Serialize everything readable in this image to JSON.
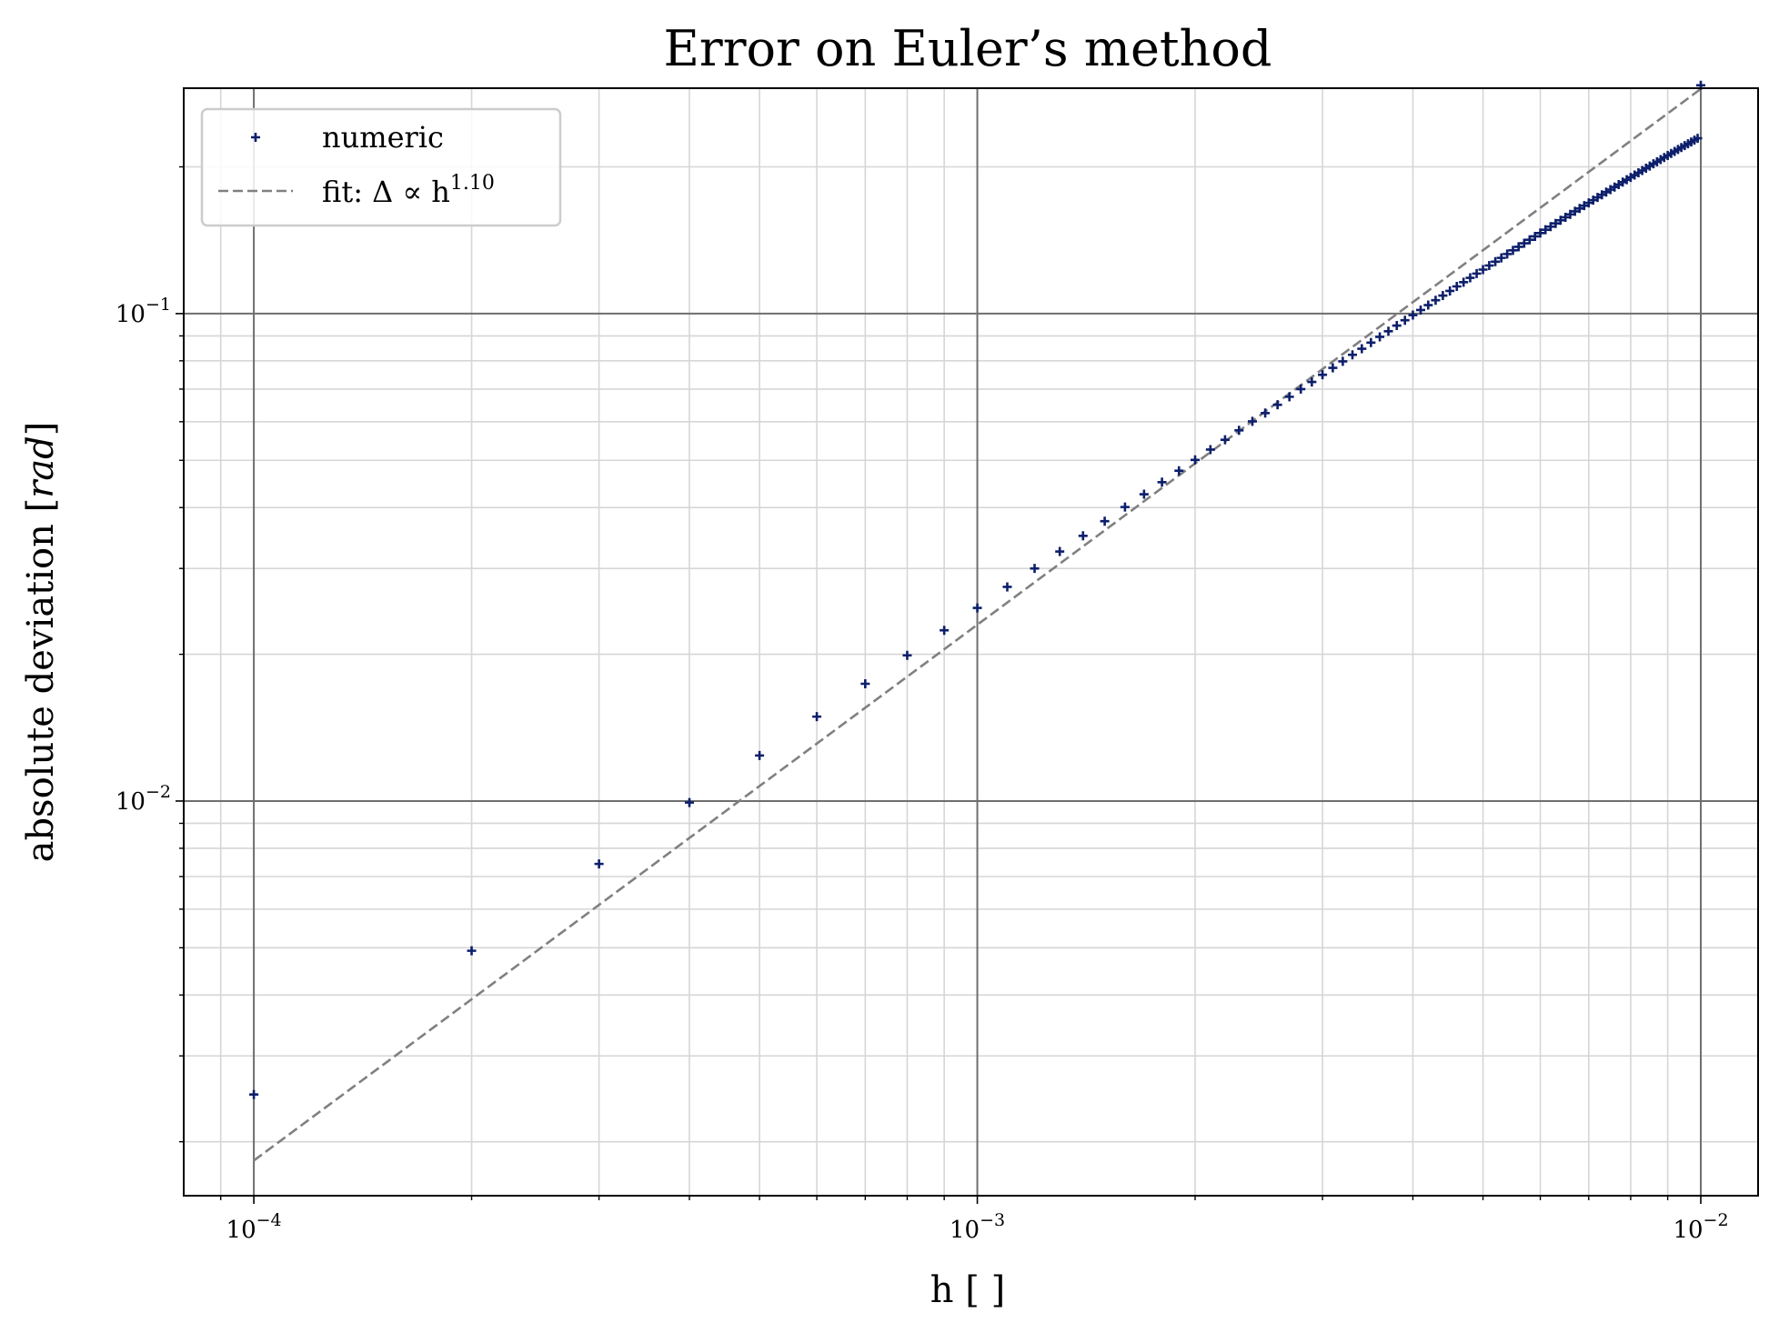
{
  "chart_data": {
    "type": "scatter",
    "title": "Error on Euler’s method",
    "xlabel": "h [ ]",
    "ylabel": "absolute deviation [rad]",
    "x_scale": "log",
    "y_scale": "log",
    "xlim": [
      8e-05,
      0.012
    ],
    "ylim": [
      0.00155,
      0.29
    ],
    "grid": true,
    "legend_position": "top-left",
    "x_ticks": [
      {
        "value": 0.0001,
        "base": "10",
        "exp": "−4"
      },
      {
        "value": 0.001,
        "base": "10",
        "exp": "−3"
      },
      {
        "value": 0.01,
        "base": "10",
        "exp": "−2"
      }
    ],
    "y_ticks": [
      {
        "value": 0.01,
        "base": "10",
        "exp": "−2"
      },
      {
        "value": 0.1,
        "base": "10",
        "exp": "−1"
      }
    ],
    "colors": {
      "numeric": "#0d1f6b",
      "fit": "#808080"
    },
    "series": [
      {
        "name": "numeric",
        "kind": "points",
        "marker": "+",
        "x": [
          0.0001,
          0.0002,
          0.0003,
          0.0004,
          0.0005,
          0.0006,
          0.0007,
          0.0008,
          0.0009,
          0.001,
          0.0011,
          0.0012,
          0.0013,
          0.0014,
          0.0015,
          0.0016,
          0.0017,
          0.0018,
          0.0019,
          0.002,
          0.0021,
          0.0022,
          0.0023,
          0.0024,
          0.0025,
          0.0026,
          0.0027,
          0.0028,
          0.0029,
          0.003,
          0.0031,
          0.0032,
          0.0033,
          0.0034,
          0.0035,
          0.0036,
          0.0037,
          0.0038,
          0.0039,
          0.004,
          0.0041,
          0.0042,
          0.0043,
          0.0044,
          0.0045,
          0.0046,
          0.0047,
          0.0048,
          0.0049,
          0.005,
          0.0051,
          0.0052,
          0.0053,
          0.0054,
          0.0055,
          0.0056,
          0.0057,
          0.0058,
          0.0059,
          0.006,
          0.0061,
          0.0062,
          0.0063,
          0.0064,
          0.0065,
          0.0066,
          0.0067,
          0.0068,
          0.0069,
          0.007,
          0.0071,
          0.0072,
          0.0073,
          0.0074,
          0.0075,
          0.0076,
          0.0077,
          0.0078,
          0.0079,
          0.008,
          0.0081,
          0.0082,
          0.0083,
          0.0084,
          0.0085,
          0.0086,
          0.0087,
          0.0088,
          0.0089,
          0.009,
          0.0091,
          0.0092,
          0.0093,
          0.0094,
          0.0095,
          0.0096,
          0.0097,
          0.0098,
          0.0099,
          0.01
        ],
        "y": [
          0.0025,
          0.00493,
          0.00743,
          0.00993,
          0.0124,
          0.0149,
          0.0174,
          0.0199,
          0.0224,
          0.0249,
          0.0275,
          0.03,
          0.0325,
          0.035,
          0.0375,
          0.0401,
          0.0426,
          0.0451,
          0.0476,
          0.0501,
          0.0526,
          0.0551,
          0.0576,
          0.0601,
          0.0625,
          0.065,
          0.0675,
          0.07,
          0.0724,
          0.0749,
          0.0774,
          0.0798,
          0.0823,
          0.0847,
          0.0872,
          0.0896,
          0.092,
          0.0945,
          0.0969,
          0.0993,
          0.1017,
          0.1041,
          0.1065,
          0.1089,
          0.1113,
          0.1137,
          0.116,
          0.1184,
          0.1208,
          0.1231,
          0.1255,
          0.1278,
          0.1301,
          0.1325,
          0.1348,
          0.1371,
          0.1394,
          0.1417,
          0.144,
          0.1463,
          0.1486,
          0.1508,
          0.1531,
          0.1554,
          0.1576,
          0.1598,
          0.1621,
          0.1643,
          0.1665,
          0.1687,
          0.1709,
          0.1731,
          0.1753,
          0.1775,
          0.1796,
          0.1818,
          0.1839,
          0.1861,
          0.1882,
          0.1903,
          0.1924,
          0.1945,
          0.1966,
          0.1987,
          0.2008,
          0.2029,
          0.2049,
          0.207,
          0.209,
          0.211,
          0.2131,
          0.2151,
          0.2171,
          0.2191,
          0.2211,
          0.223,
          0.225,
          0.2269,
          0.2289,
          0.294
        ]
      },
      {
        "name": "fit: Δ ∝ h^1.10",
        "legend_prefix": "fit: Δ ∝ h",
        "legend_exp": "1.10",
        "kind": "line",
        "style": "dashed",
        "x": [
          0.0001,
          0.01
        ],
        "y": [
          0.00183,
          0.289
        ]
      }
    ]
  }
}
